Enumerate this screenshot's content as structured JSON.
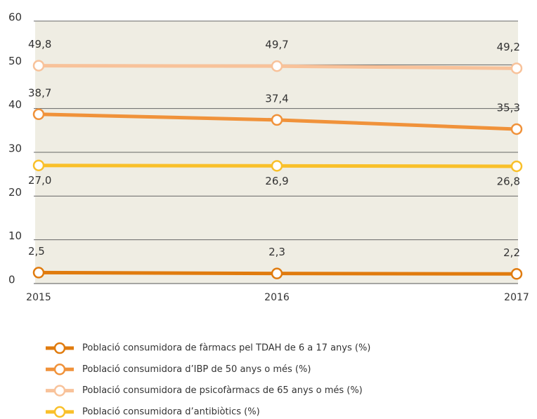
{
  "chart_data": {
    "type": "line",
    "categories": [
      "2015",
      "2016",
      "2017"
    ],
    "series": [
      {
        "name": "Població consumidora de fàrmacs pel TDAH de 6 a 17 anys (%)",
        "color": "#e07b0e",
        "values": [
          2.5,
          2.3,
          2.2
        ],
        "value_labels": [
          "2,5",
          "2,3",
          "2,2"
        ]
      },
      {
        "name": "Població consumidora d’IBP de 50 anys o més (%)",
        "color": "#f0923a",
        "values": [
          38.7,
          37.4,
          35.3
        ],
        "value_labels": [
          "38,7",
          "37,4",
          "35,3"
        ]
      },
      {
        "name": "Població consumidora de psicofàrmacs de 65 anys o més (%)",
        "color": "#f8c29a",
        "values": [
          49.8,
          49.7,
          49.2
        ],
        "value_labels": [
          "49,8",
          "49,7",
          "49,2"
        ]
      },
      {
        "name": "Població consumidora d’antibiòtics (%)",
        "color": "#f9c02a",
        "values": [
          27.0,
          26.9,
          26.8
        ],
        "value_labels": [
          "27,0",
          "26,9",
          "26,8"
        ]
      }
    ],
    "ylim": [
      0,
      60
    ],
    "yticks": [
      0,
      10,
      20,
      30,
      40,
      50,
      60
    ],
    "grid": true
  }
}
